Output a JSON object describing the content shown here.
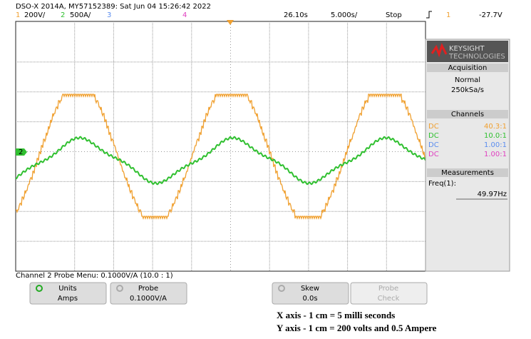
{
  "header": {
    "instrument": "DSO-X 2014A, MY57152389: Sat Jun 04 15:26:42 2022",
    "channels": [
      {
        "num": "1",
        "scale": "200V/"
      },
      {
        "num": "2",
        "scale": "500A/"
      },
      {
        "num": "3"
      },
      {
        "num": "4"
      }
    ],
    "time_position": "26.10s",
    "time_scale": "5.000s/",
    "run_state": "Stop",
    "trigger_source": "1",
    "trigger_level": "-27.7V"
  },
  "ground_marker": "2",
  "side_panel": {
    "brand": "KEYSIGHT",
    "brand_sub": "TECHNOLOGIES",
    "acquisition": {
      "title": "Acquisition",
      "mode": "Normal",
      "rate": "250kSa/s"
    },
    "channels": {
      "title": "Channels",
      "rows": [
        {
          "coupling": "DC",
          "ratio": "40.3:1"
        },
        {
          "coupling": "DC",
          "ratio": "10.0:1"
        },
        {
          "coupling": "DC",
          "ratio": "1.00:1"
        },
        {
          "coupling": "DC",
          "ratio": "1.00:1"
        }
      ]
    },
    "measurements": {
      "title": "Measurements",
      "label": "Freq(1):",
      "value": "49.97Hz"
    }
  },
  "menu": {
    "title": "Channel 2 Probe Menu: 0.1000V/A (10.0 : 1)",
    "softkeys": [
      {
        "label": "Units",
        "value": "Amps"
      },
      {
        "label": "Probe",
        "value": "0.1000V/A"
      },
      {
        "label": "Skew",
        "value": "0.0s"
      },
      {
        "label": "Probe",
        "value": "Check"
      }
    ]
  },
  "captions": [
    "X axis - 1 cm = 5 milli seconds",
    "Y axis - 1 cm = 200 volts and 0.5 Ampere"
  ]
}
